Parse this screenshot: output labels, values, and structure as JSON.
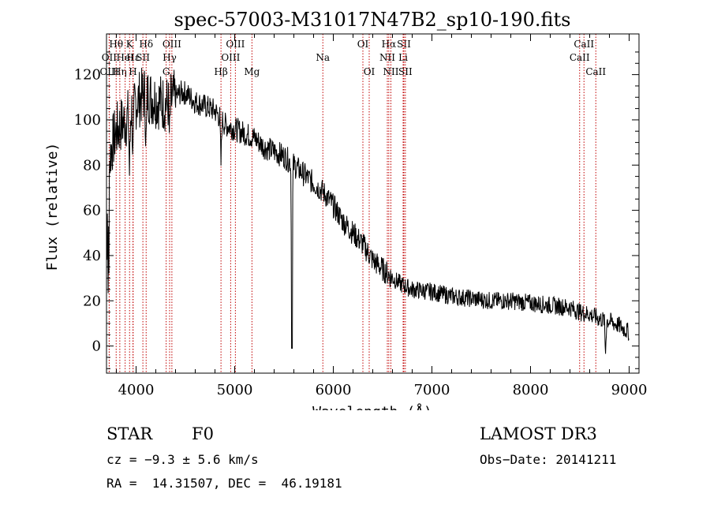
{
  "colors": {
    "axis": "#000000",
    "spectrum": "#000000",
    "line_marker": "#c00000",
    "background": "#ffffff"
  },
  "chart_data": {
    "type": "line",
    "title": "spec-57003-M31017N47B2_sp10-190.fits",
    "xlabel": "Wavelength (Å)",
    "ylabel": "Flux (relative)",
    "xlim": [
      3700,
      9100
    ],
    "ylim": [
      -12,
      138
    ],
    "xticks": [
      4000,
      5000,
      6000,
      7000,
      8000,
      9000
    ],
    "yticks": [
      0,
      20,
      40,
      60,
      80,
      100,
      120
    ],
    "spectrum_outline": {
      "x": [
        3700,
        3750,
        3800,
        3850,
        3900,
        3950,
        4000,
        4050,
        4100,
        4150,
        4200,
        4250,
        4300,
        4350,
        4400,
        4450,
        4500,
        4550,
        4600,
        4700,
        4800,
        4900,
        5000,
        5100,
        5200,
        5300,
        5400,
        5500,
        5600,
        5700,
        5800,
        5900,
        6000,
        6100,
        6200,
        6300,
        6400,
        6500,
        6600,
        6700,
        6800,
        7000,
        7200,
        7400,
        7600,
        7800,
        8000,
        8200,
        8400,
        8500,
        8600,
        8700,
        8800,
        8900,
        9000
      ],
      "y": [
        70,
        88,
        95,
        98,
        100,
        104,
        108,
        110,
        112,
        110,
        109,
        108,
        107,
        108,
        110,
        112,
        112,
        110,
        108,
        106,
        104,
        98,
        96,
        94,
        92,
        88,
        86,
        84,
        80,
        76,
        72,
        68,
        62,
        55,
        50,
        45,
        38,
        34,
        30,
        27,
        25,
        24,
        22,
        21,
        20,
        20,
        19,
        18,
        17,
        15,
        14,
        12,
        11,
        9,
        6
      ]
    },
    "spectrum_noise": 5,
    "absorption_features": [
      {
        "x": 4861,
        "depth": 20
      },
      {
        "x": 4340,
        "depth": 18
      },
      {
        "x": 4102,
        "depth": 25
      },
      {
        "x": 5580,
        "depth": 60
      },
      {
        "x": 3970,
        "depth": 25
      },
      {
        "x": 3934,
        "depth": 28
      },
      {
        "x": 8760,
        "depth": 15
      }
    ],
    "line_markers": [
      {
        "label": "Hθ",
        "wavelength": 3798,
        "row": 0
      },
      {
        "label": "OII",
        "wavelength": 3727,
        "row": 1
      },
      {
        "label": "OIII",
        "wavelength": 3728,
        "row": 2
      },
      {
        "label": "Hη",
        "wavelength": 3835,
        "row": 2
      },
      {
        "label": "HeI",
        "wavelength": 3889,
        "row": 1
      },
      {
        "label": "K",
        "wavelength": 3934,
        "row": 0
      },
      {
        "label": "SII",
        "wavelength": 4069,
        "row": 1
      },
      {
        "label": "Hε",
        "wavelength": 3970,
        "row": 1
      },
      {
        "label": "H",
        "wavelength": 3968,
        "row": 2
      },
      {
        "label": "Hδ",
        "wavelength": 4102,
        "row": 0
      },
      {
        "label": "OIII",
        "wavelength": 4363,
        "row": 0
      },
      {
        "label": "Hγ",
        "wavelength": 4340,
        "row": 1
      },
      {
        "label": "G",
        "wavelength": 4305,
        "row": 2
      },
      {
        "label": "Hβ",
        "wavelength": 4861,
        "row": 2
      },
      {
        "label": "OIII",
        "wavelength": 5007,
        "row": 0
      },
      {
        "label": "OIII",
        "wavelength": 4959,
        "row": 1
      },
      {
        "label": "Mg",
        "wavelength": 5175,
        "row": 2
      },
      {
        "label": "Na",
        "wavelength": 5894,
        "row": 1
      },
      {
        "label": "OI",
        "wavelength": 6300,
        "row": 0
      },
      {
        "label": "OI",
        "wavelength": 6364,
        "row": 2
      },
      {
        "label": "Hα",
        "wavelength": 6563,
        "row": 0
      },
      {
        "label": "NII",
        "wavelength": 6548,
        "row": 1
      },
      {
        "label": "NII",
        "wavelength": 6584,
        "row": 2
      },
      {
        "label": "SII",
        "wavelength": 6716,
        "row": 0
      },
      {
        "label": "Li",
        "wavelength": 6708,
        "row": 1
      },
      {
        "label": "SII",
        "wavelength": 6731,
        "row": 2
      },
      {
        "label": "CaII",
        "wavelength": 8542,
        "row": 0
      },
      {
        "label": "CaII",
        "wavelength": 8498,
        "row": 1
      },
      {
        "label": "CaII",
        "wavelength": 8662,
        "row": 2
      }
    ]
  },
  "footer": {
    "class_label": "STAR",
    "subclass": "F0",
    "survey": "LAMOST DR3",
    "cz": "cz = −9.3 ± 5.6 km/s",
    "obs_date": "Obs−Date: 20141211",
    "coords": "RA =  14.31507, DEC =  46.19181"
  }
}
